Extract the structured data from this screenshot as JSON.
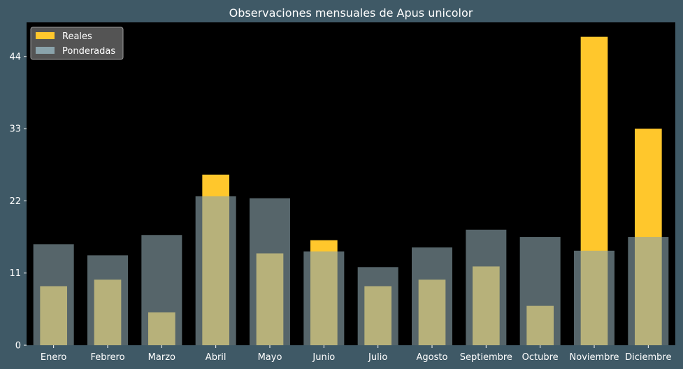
{
  "chart_data": {
    "type": "bar",
    "title": "Observaciones mensuales de Apus unicolor",
    "xlabel": "",
    "ylabel": "",
    "categories": [
      "Enero",
      "Febrero",
      "Marzo",
      "Abril",
      "Mayo",
      "Junio",
      "Julio",
      "Agosto",
      "Septiembre",
      "Octubre",
      "Noviembre",
      "Diciembre"
    ],
    "series": [
      {
        "name": "Reales",
        "color": "#ffc72c",
        "values": [
          9,
          10,
          5,
          26,
          14,
          16,
          9,
          10,
          12,
          6,
          47,
          33
        ]
      },
      {
        "name": "Ponderadas",
        "color": "#8aa3ab",
        "values": [
          15.4,
          13.7,
          16.8,
          22.7,
          22.4,
          14.3,
          11.9,
          14.9,
          17.6,
          16.5,
          14.4,
          16.5
        ]
      }
    ],
    "ylim": [
      0,
      49.2
    ],
    "yticks": [
      0,
      11,
      22,
      33,
      44
    ],
    "legend": "top-left",
    "grid": false,
    "colors": {
      "figure_bg": "#3f5966",
      "plot_bg": "#000000"
    }
  }
}
